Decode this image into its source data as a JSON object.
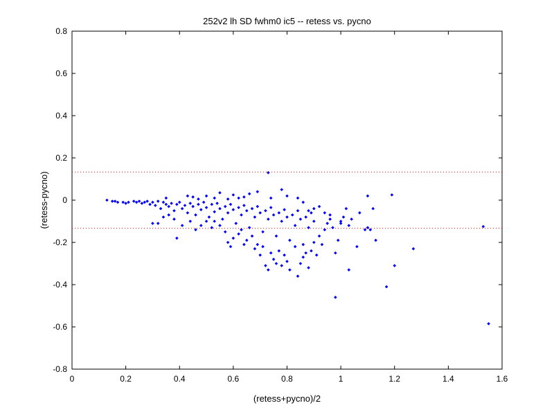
{
  "chart_data": {
    "type": "scatter",
    "title": "252v2 lh SD fwhm0 ic5 -- retess vs. pycno",
    "xlabel": "(retess+pycno)/2",
    "ylabel": "(retess-pycno)",
    "xlim": [
      0,
      1.6
    ],
    "ylim": [
      -0.8,
      0.8
    ],
    "xticks": [
      0,
      0.2,
      0.4,
      0.6,
      0.8,
      1,
      1.2,
      1.4,
      1.6
    ],
    "xtick_labels": [
      "0",
      "0.2",
      "0.4",
      "0.6",
      "0.8",
      "1",
      "1.2",
      "1.4",
      "1.6"
    ],
    "yticks": [
      -0.8,
      -0.6,
      -0.4,
      -0.2,
      0,
      0.2,
      0.4,
      0.6,
      0.8
    ],
    "ytick_labels": [
      "-0.8",
      "-0.6",
      "-0.4",
      "-0.2",
      "0",
      "0.2",
      "0.4",
      "0.6",
      "0.8"
    ],
    "grid": false,
    "colors": {
      "points": "#0000ff",
      "reference_lines": "#ff0000"
    },
    "reference_lines": [
      0.133,
      -0.133
    ],
    "series": [
      {
        "points": [
          [
            0.13,
            0.0
          ],
          [
            0.15,
            -0.005
          ],
          [
            0.16,
            -0.005
          ],
          [
            0.17,
            -0.01
          ],
          [
            0.19,
            -0.01
          ],
          [
            0.2,
            -0.015
          ],
          [
            0.21,
            -0.01
          ],
          [
            0.23,
            -0.005
          ],
          [
            0.24,
            -0.01
          ],
          [
            0.25,
            -0.005
          ],
          [
            0.26,
            -0.015
          ],
          [
            0.27,
            -0.01
          ],
          [
            0.28,
            -0.005
          ],
          [
            0.29,
            -0.02
          ],
          [
            0.3,
            -0.01
          ],
          [
            0.31,
            -0.025
          ],
          [
            0.32,
            -0.005
          ],
          [
            0.33,
            -0.04
          ],
          [
            0.34,
            -0.01
          ],
          [
            0.35,
            -0.02
          ],
          [
            0.36,
            -0.03
          ],
          [
            0.37,
            -0.015
          ],
          [
            0.38,
            -0.05
          ],
          [
            0.39,
            -0.02
          ],
          [
            0.4,
            -0.01
          ],
          [
            0.41,
            -0.04
          ],
          [
            0.42,
            -0.025
          ],
          [
            0.43,
            -0.06
          ],
          [
            0.44,
            -0.015
          ],
          [
            0.45,
            -0.03
          ],
          [
            0.46,
            -0.07
          ],
          [
            0.47,
            -0.02
          ],
          [
            0.48,
            -0.045
          ],
          [
            0.49,
            -0.01
          ],
          [
            0.5,
            -0.035
          ],
          [
            0.51,
            -0.08
          ],
          [
            0.52,
            -0.02
          ],
          [
            0.53,
            -0.055
          ],
          [
            0.54,
            -0.015
          ],
          [
            0.55,
            -0.04
          ],
          [
            0.56,
            -0.09
          ],
          [
            0.57,
            -0.03
          ],
          [
            0.58,
            -0.06
          ],
          [
            0.59,
            -0.02
          ],
          [
            0.6,
            -0.045
          ],
          [
            0.61,
            -0.11
          ],
          [
            0.62,
            -0.035
          ],
          [
            0.63,
            -0.07
          ],
          [
            0.64,
            -0.025
          ],
          [
            0.65,
            -0.05
          ],
          [
            0.66,
            -0.13
          ],
          [
            0.67,
            -0.04
          ],
          [
            0.68,
            -0.08
          ],
          [
            0.69,
            -0.03
          ],
          [
            0.7,
            -0.06
          ],
          [
            0.71,
            -0.15
          ],
          [
            0.72,
            -0.05
          ],
          [
            0.73,
            -0.09
          ],
          [
            0.74,
            -0.035
          ],
          [
            0.75,
            -0.07
          ],
          [
            0.76,
            -0.17
          ],
          [
            0.77,
            -0.06
          ],
          [
            0.78,
            -0.1
          ],
          [
            0.79,
            -0.045
          ],
          [
            0.8,
            -0.08
          ],
          [
            0.81,
            -0.19
          ],
          [
            0.82,
            -0.07
          ],
          [
            0.83,
            -0.12
          ],
          [
            0.84,
            -0.05
          ],
          [
            0.85,
            -0.09
          ],
          [
            0.86,
            -0.21
          ],
          [
            0.87,
            -0.08
          ],
          [
            0.88,
            -0.13
          ],
          [
            0.89,
            -0.06
          ],
          [
            0.9,
            -0.1
          ],
          [
            0.32,
            -0.11
          ],
          [
            0.3,
            -0.11
          ],
          [
            0.34,
            -0.08
          ],
          [
            0.36,
            -0.07
          ],
          [
            0.38,
            -0.09
          ],
          [
            0.39,
            -0.18
          ],
          [
            0.41,
            -0.12
          ],
          [
            0.44,
            -0.1
          ],
          [
            0.46,
            -0.14
          ],
          [
            0.48,
            -0.12
          ],
          [
            0.5,
            -0.1
          ],
          [
            0.52,
            -0.13
          ],
          [
            0.53,
            -0.1
          ],
          [
            0.55,
            -0.12
          ],
          [
            0.57,
            -0.15
          ],
          [
            0.58,
            -0.2
          ],
          [
            0.59,
            -0.22
          ],
          [
            0.6,
            -0.18
          ],
          [
            0.62,
            -0.16
          ],
          [
            0.63,
            -0.14
          ],
          [
            0.64,
            -0.21
          ],
          [
            0.65,
            -0.19
          ],
          [
            0.67,
            -0.17
          ],
          [
            0.68,
            -0.23
          ],
          [
            0.69,
            -0.21
          ],
          [
            0.7,
            -0.26
          ],
          [
            0.71,
            -0.22
          ],
          [
            0.72,
            -0.31
          ],
          [
            0.73,
            -0.33
          ],
          [
            0.74,
            -0.25
          ],
          [
            0.75,
            -0.28
          ],
          [
            0.76,
            -0.3
          ],
          [
            0.77,
            -0.24
          ],
          [
            0.78,
            -0.31
          ],
          [
            0.79,
            -0.26
          ],
          [
            0.8,
            -0.29
          ],
          [
            0.81,
            -0.33
          ],
          [
            0.83,
            -0.22
          ],
          [
            0.84,
            -0.36
          ],
          [
            0.85,
            -0.3
          ],
          [
            0.86,
            -0.27
          ],
          [
            0.87,
            -0.25
          ],
          [
            0.88,
            -0.32
          ],
          [
            0.89,
            -0.24
          ],
          [
            0.9,
            -0.2
          ],
          [
            0.91,
            -0.26
          ],
          [
            0.92,
            -0.17
          ],
          [
            0.93,
            -0.21
          ],
          [
            0.94,
            -0.14
          ],
          [
            0.95,
            -0.11
          ],
          [
            0.96,
            -0.09
          ],
          [
            0.97,
            -0.13
          ],
          [
            0.98,
            -0.25
          ],
          [
            0.99,
            -0.19
          ],
          [
            1.0,
            -0.11
          ],
          [
            0.98,
            -0.46
          ],
          [
            1.01,
            -0.08
          ],
          [
            1.03,
            -0.12
          ],
          [
            1.03,
            -0.33
          ],
          [
            1.04,
            -0.09
          ],
          [
            1.06,
            -0.22
          ],
          [
            1.07,
            -0.06
          ],
          [
            1.09,
            -0.14
          ],
          [
            1.1,
            -0.13
          ],
          [
            1.1,
            0.02
          ],
          [
            1.11,
            -0.14
          ],
          [
            1.12,
            -0.04
          ],
          [
            1.13,
            -0.19
          ],
          [
            1.17,
            -0.41
          ],
          [
            1.19,
            0.025
          ],
          [
            1.2,
            -0.31
          ],
          [
            1.27,
            -0.23
          ],
          [
            1.53,
            -0.125
          ],
          [
            1.55,
            -0.585
          ],
          [
            0.73,
            0.13
          ],
          [
            0.78,
            0.05
          ],
          [
            0.69,
            0.04
          ],
          [
            0.55,
            0.035
          ],
          [
            0.5,
            0.02
          ],
          [
            0.45,
            0.015
          ],
          [
            0.6,
            0.025
          ],
          [
            0.66,
            0.03
          ],
          [
            0.62,
            0.01
          ],
          [
            0.35,
            0.01
          ],
          [
            0.43,
            0.02
          ],
          [
            0.8,
            0.02
          ],
          [
            0.84,
            0.01
          ],
          [
            0.74,
            0.01
          ],
          [
            0.58,
            0.005
          ],
          [
            0.64,
            0.015
          ],
          [
            0.47,
            0.005
          ],
          [
            0.53,
            0.01
          ],
          [
            0.86,
            -0.01
          ],
          [
            0.92,
            -0.03
          ],
          [
            0.88,
            -0.05
          ],
          [
            0.94,
            -0.06
          ],
          [
            0.9,
            -0.04
          ],
          [
            0.96,
            -0.07
          ],
          [
            1.0,
            -0.1
          ],
          [
            1.02,
            -0.04
          ]
        ]
      }
    ]
  }
}
